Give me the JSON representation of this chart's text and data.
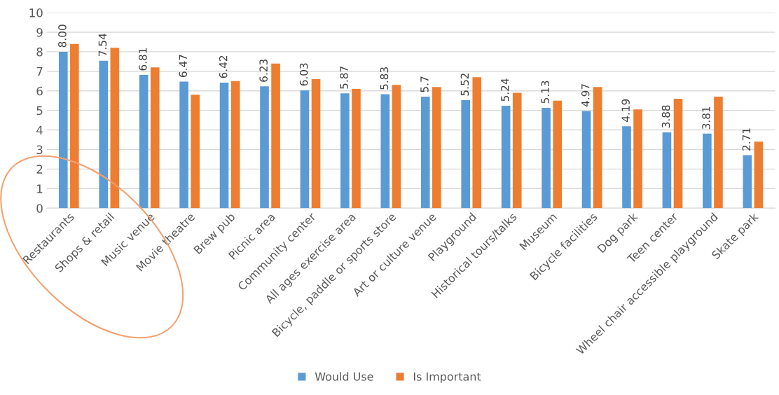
{
  "chart_data": {
    "type": "bar",
    "categories": [
      "Restaurants",
      "Shops & retail",
      "Music venue",
      "Movie theatre",
      "Brew pub",
      "Picnic area",
      "Community center",
      "All ages exercise area",
      "Bicycle, paddle or sports store",
      "Art or culture venue",
      "Playground",
      "Historical tours/talks",
      "Museum",
      "Bicycle facilities",
      "Dog park",
      "Teen center",
      "Wheel chair accessible playground",
      "Skate park"
    ],
    "series": [
      {
        "name": "Would Use",
        "color": "#5b9bd5",
        "values": [
          8.0,
          7.54,
          6.81,
          6.47,
          6.42,
          6.23,
          6.03,
          5.87,
          5.83,
          5.7,
          5.52,
          5.24,
          5.13,
          4.97,
          4.19,
          3.88,
          3.81,
          2.71
        ],
        "value_labels": [
          "8.00",
          "7.54",
          "6.81",
          "6.47",
          "6.42",
          "6.23",
          "6.03",
          "5.87",
          "5.83",
          "5.7",
          "5.52",
          "5.24",
          "5.13",
          "4.97",
          "4.19",
          "3.88",
          "3.81",
          "2.71"
        ]
      },
      {
        "name": "Is Important",
        "color": "#ed7d31",
        "values": [
          8.4,
          8.2,
          7.2,
          5.8,
          6.5,
          7.4,
          6.6,
          6.1,
          6.3,
          6.2,
          6.7,
          5.9,
          5.5,
          6.2,
          5.05,
          5.6,
          5.7,
          3.4
        ]
      }
    ],
    "ylim": [
      0,
      10
    ],
    "yticks": [
      0,
      1,
      2,
      3,
      4,
      5,
      6,
      7,
      8,
      9,
      10
    ],
    "grid": "y",
    "legend": "bottom"
  }
}
